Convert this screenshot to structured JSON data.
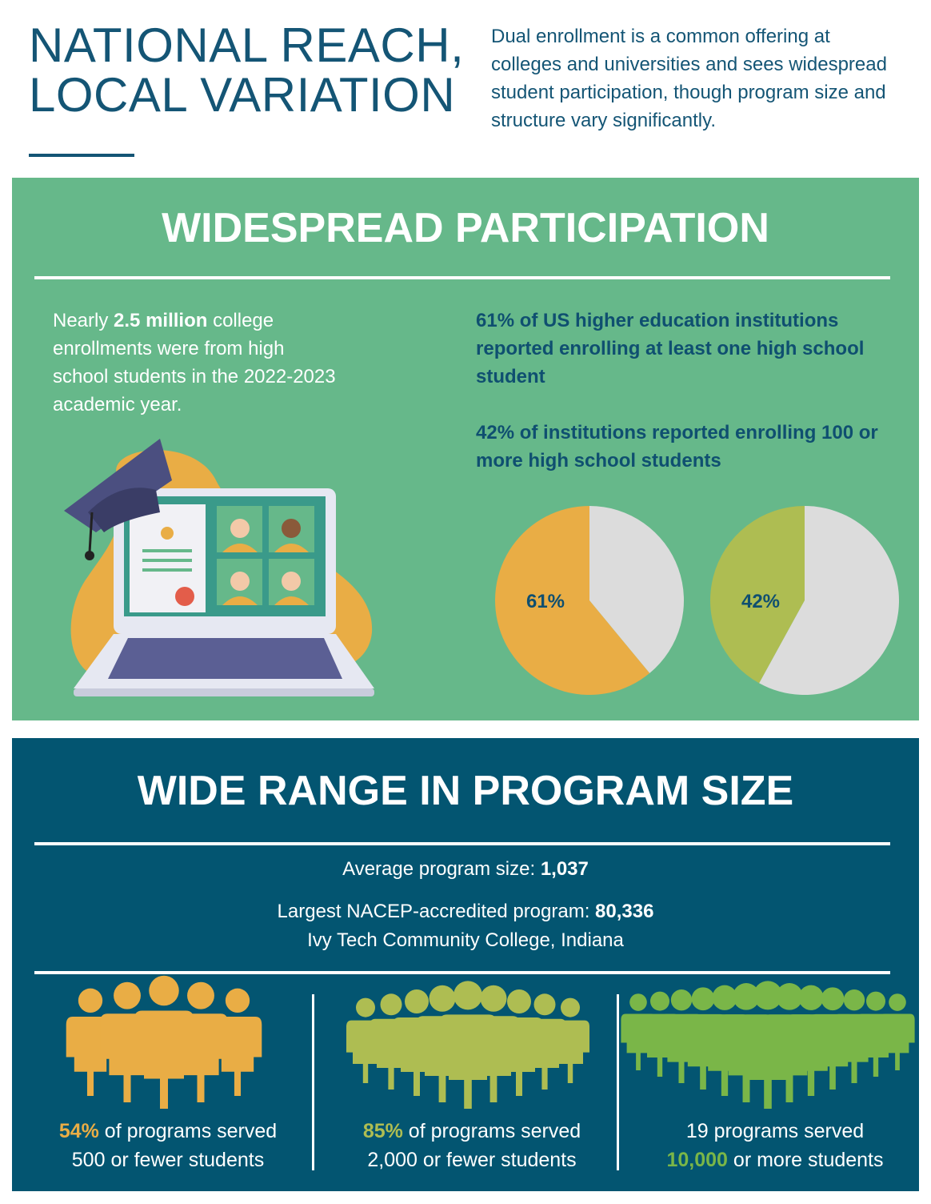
{
  "header": {
    "title_lines": [
      "NATIONAL REACH,",
      "LOCAL VARIATION"
    ],
    "intro": "Dual enrollment is a common offering at colleges and universities and sees widespread student participation, though program size and structure vary significantly."
  },
  "participation": {
    "heading": "WIDESPREAD PARTICIPATION",
    "fact": {
      "before": "Nearly ",
      "bold": "2.5 million",
      "after": " college enrollments were from high school students in the 2022-2023 academic year."
    },
    "stats": [
      "61% of US higher education institutions reported enrolling at least one high school student",
      "42% of institutions reported enrolling 100 or more high school students"
    ],
    "pies": [
      {
        "type": "pie",
        "values": [
          61,
          39
        ],
        "value_labels": [
          "61%",
          null
        ],
        "colors": [
          "#e9ad45",
          "#dcdcdc"
        ]
      },
      {
        "type": "pie",
        "values": [
          42,
          58
        ],
        "value_labels": [
          "42%",
          null
        ],
        "colors": [
          "#aebd52",
          "#dcdcdc"
        ]
      }
    ]
  },
  "program_size": {
    "heading": "WIDE RANGE IN PROGRAM SIZE",
    "average": {
      "label": "Average program size: ",
      "value": "1,037"
    },
    "largest": {
      "label": "Largest NACEP-accredited program: ",
      "value": "80,336",
      "name": "Ivy Tech Community College, Indiana"
    },
    "columns": [
      {
        "highlight": "54%",
        "rest": " of programs served",
        "line2": "500 or fewer students",
        "color": "#e9ad45"
      },
      {
        "highlight": "85%",
        "rest": " of programs served",
        "line2": "2,000 or fewer students",
        "color": "#aebd52"
      },
      {
        "line1": "19 programs served",
        "highlight": "10,000",
        "rest": " or more students",
        "color": "#7ab648"
      }
    ]
  }
}
